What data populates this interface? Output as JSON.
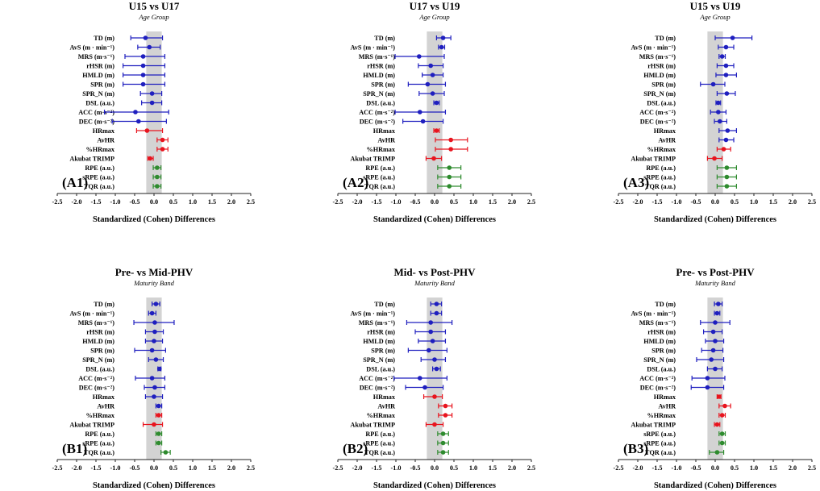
{
  "colors": {
    "blue": "#1f1fbf",
    "red": "#e8141e",
    "green": "#2e8b2e",
    "band": "#d3d3d3",
    "axis": "#222222"
  },
  "chart_data": [
    {
      "type": "forest",
      "panel_id": "(A1)",
      "title": "U15 vs U17",
      "subtitle": "Age Group",
      "xlabel": "Standardized (Cohen) Differences",
      "xlim": [
        -2.5,
        2.5
      ],
      "xticks": [
        "-2.5",
        "-2.0",
        "-1.5",
        "-1.0",
        "-0.5",
        "0.0",
        "0.5",
        "1.0",
        "1.5",
        "2.0",
        "2.5"
      ],
      "band": [
        -0.2,
        0.2
      ],
      "rows": [
        {
          "label": "TD (m)",
          "est": -0.22,
          "lo": -0.6,
          "hi": 0.22,
          "group": "external"
        },
        {
          "label": "AvS (m · min⁻¹)",
          "est": -0.12,
          "lo": -0.42,
          "hi": 0.16,
          "group": "external"
        },
        {
          "label": "MRS (m·s⁻¹)",
          "est": -0.28,
          "lo": -0.75,
          "hi": 0.28,
          "group": "external"
        },
        {
          "label": "rHSR (m)",
          "est": -0.28,
          "lo": -0.8,
          "hi": 0.28,
          "group": "external"
        },
        {
          "label": "HMLD (m)",
          "est": -0.28,
          "lo": -0.8,
          "hi": 0.28,
          "group": "external"
        },
        {
          "label": "SPR (m)",
          "est": -0.28,
          "lo": -0.8,
          "hi": 0.28,
          "group": "external"
        },
        {
          "label": "SPR_N (m)",
          "est": -0.05,
          "lo": -0.35,
          "hi": 0.2,
          "group": "external"
        },
        {
          "label": "DSL (a.u.)",
          "est": -0.05,
          "lo": -0.32,
          "hi": 0.2,
          "group": "external"
        },
        {
          "label": "ACC (m·s⁻²)",
          "est": -0.48,
          "lo": -1.28,
          "hi": 0.38,
          "group": "external"
        },
        {
          "label": "DEC (m·s⁻²)",
          "est": -0.4,
          "lo": -1.08,
          "hi": 0.32,
          "group": "external"
        },
        {
          "label": "HRmax",
          "est": -0.18,
          "lo": -0.45,
          "hi": 0.22,
          "group": "internal_hr"
        },
        {
          "label": "AvHR",
          "est": 0.22,
          "lo": 0.08,
          "hi": 0.36,
          "group": "internal_hr"
        },
        {
          "label": "%HRmax",
          "est": 0.22,
          "lo": 0.08,
          "hi": 0.36,
          "group": "internal_hr"
        },
        {
          "label": "Akubat TRIMP",
          "est": -0.1,
          "lo": -0.16,
          "hi": -0.02,
          "group": "internal_hr"
        },
        {
          "label": "RPE (a.u.)",
          "est": 0.08,
          "lo": -0.02,
          "hi": 0.18,
          "group": "internal_rpe"
        },
        {
          "label": "sRPE (a.u.)",
          "est": 0.08,
          "lo": -0.02,
          "hi": 0.18,
          "group": "internal_rpe"
        },
        {
          "label": "TQR (a.u.)",
          "est": 0.08,
          "lo": -0.02,
          "hi": 0.18,
          "group": "internal_rpe"
        }
      ]
    },
    {
      "type": "forest",
      "panel_id": "(A2)",
      "title": "U17 vs U19",
      "subtitle": "Age Group",
      "xlabel": "Standardized (Cohen) Differences",
      "xlim": [
        -2.5,
        2.5
      ],
      "xticks": [
        "-2.5",
        "-2.0",
        "-1.5",
        "-1.0",
        "-0.5",
        "0.0",
        "0.5",
        "1.0",
        "1.5",
        "2.0",
        "2.5"
      ],
      "band": [
        -0.2,
        0.2
      ],
      "rows": [
        {
          "label": "TD (m)",
          "est": 0.22,
          "lo": 0.05,
          "hi": 0.42,
          "group": "external"
        },
        {
          "label": "AvS (m · min⁻¹)",
          "est": 0.18,
          "lo": 0.1,
          "hi": 0.26,
          "group": "external"
        },
        {
          "label": "MRS (m·s⁻¹)",
          "est": -0.4,
          "lo": -1.02,
          "hi": 0.25,
          "group": "external"
        },
        {
          "label": "rHSR (m)",
          "est": -0.1,
          "lo": -0.42,
          "hi": 0.22,
          "group": "external"
        },
        {
          "label": "HMLD (m)",
          "est": -0.05,
          "lo": -0.32,
          "hi": 0.22,
          "group": "external"
        },
        {
          "label": "SPR (m)",
          "est": -0.18,
          "lo": -0.68,
          "hi": 0.28,
          "group": "external"
        },
        {
          "label": "SPR_N (m)",
          "est": -0.05,
          "lo": -0.4,
          "hi": 0.25,
          "group": "external"
        },
        {
          "label": "DSL (a.u.)",
          "est": 0.05,
          "lo": -0.02,
          "hi": 0.12,
          "group": "external"
        },
        {
          "label": "ACC (m·s⁻²)",
          "est": -0.38,
          "lo": -1.02,
          "hi": 0.28,
          "group": "external"
        },
        {
          "label": "DEC (m·s⁻²)",
          "est": -0.3,
          "lo": -0.82,
          "hi": 0.22,
          "group": "external"
        },
        {
          "label": "HRmax",
          "est": 0.05,
          "lo": -0.02,
          "hi": 0.12,
          "group": "internal_hr"
        },
        {
          "label": "AvHR",
          "est": 0.42,
          "lo": 0.02,
          "hi": 0.85,
          "group": "internal_hr"
        },
        {
          "label": "%HRmax",
          "est": 0.42,
          "lo": 0.02,
          "hi": 0.85,
          "group": "internal_hr"
        },
        {
          "label": "Akubat TRIMP",
          "est": -0.02,
          "lo": -0.22,
          "hi": 0.18,
          "group": "internal_hr"
        },
        {
          "label": "RPE (a.u.)",
          "est": 0.38,
          "lo": 0.08,
          "hi": 0.68,
          "group": "internal_rpe"
        },
        {
          "label": "sRPE (a.u.)",
          "est": 0.38,
          "lo": 0.08,
          "hi": 0.68,
          "group": "internal_rpe"
        },
        {
          "label": "TQR (a.u.)",
          "est": 0.38,
          "lo": 0.08,
          "hi": 0.68,
          "group": "internal_rpe"
        }
      ]
    },
    {
      "type": "forest",
      "panel_id": "(A3)",
      "title": "U15 vs U19",
      "subtitle": "Age Group",
      "xlabel": "Standardized (Cohen) Differences",
      "xlim": [
        -2.5,
        2.5
      ],
      "xticks": [
        "-2.5",
        "-2.0",
        "-1.5",
        "-1.0",
        "-0.5",
        "0.0",
        "0.5",
        "1.0",
        "1.5",
        "2.0",
        "2.5"
      ],
      "band": [
        -0.2,
        0.2
      ],
      "rows": [
        {
          "label": "TD (m)",
          "est": 0.45,
          "lo": 0.0,
          "hi": 0.95,
          "group": "external"
        },
        {
          "label": "AvS (m · min⁻¹)",
          "est": 0.28,
          "lo": 0.08,
          "hi": 0.48,
          "group": "external"
        },
        {
          "label": "MRS (m·s⁻¹)",
          "est": 0.18,
          "lo": 0.1,
          "hi": 0.26,
          "group": "external"
        },
        {
          "label": "rHSR (m)",
          "est": 0.28,
          "lo": 0.05,
          "hi": 0.48,
          "group": "external"
        },
        {
          "label": "HMLD (m)",
          "est": 0.28,
          "lo": 0.02,
          "hi": 0.55,
          "group": "external"
        },
        {
          "label": "SPR (m)",
          "est": -0.05,
          "lo": -0.38,
          "hi": 0.25,
          "group": "external"
        },
        {
          "label": "SPR_N (m)",
          "est": 0.3,
          "lo": 0.05,
          "hi": 0.52,
          "group": "external"
        },
        {
          "label": "DSL (a.u.)",
          "est": 0.08,
          "lo": 0.02,
          "hi": 0.14,
          "group": "external"
        },
        {
          "label": "ACC (m·s⁻²)",
          "est": 0.08,
          "lo": -0.12,
          "hi": 0.28,
          "group": "external"
        },
        {
          "label": "DEC (m·s⁻²)",
          "est": 0.12,
          "lo": -0.02,
          "hi": 0.3,
          "group": "external"
        },
        {
          "label": "HRmax",
          "est": 0.32,
          "lo": 0.1,
          "hi": 0.55,
          "group": "external"
        },
        {
          "label": "AvHR",
          "est": 0.28,
          "lo": 0.1,
          "hi": 0.48,
          "group": "external"
        },
        {
          "label": "%HRmax",
          "est": 0.22,
          "lo": 0.05,
          "hi": 0.4,
          "group": "internal_hr"
        },
        {
          "label": "Akubat TRIMP",
          "est": -0.02,
          "lo": -0.2,
          "hi": 0.18,
          "group": "internal_hr"
        },
        {
          "label": "RPE (a.u.)",
          "est": 0.3,
          "lo": 0.05,
          "hi": 0.55,
          "group": "internal_rpe"
        },
        {
          "label": "sRPE (a.u.)",
          "est": 0.3,
          "lo": 0.05,
          "hi": 0.55,
          "group": "internal_rpe"
        },
        {
          "label": "TQR (a.u.)",
          "est": 0.3,
          "lo": 0.05,
          "hi": 0.55,
          "group": "internal_rpe"
        }
      ]
    },
    {
      "type": "forest",
      "panel_id": "(B1)",
      "title": "Pre- vs Mid-PHV",
      "subtitle": "Maturity Band",
      "xlabel": "Standardized (Cohen) Differences",
      "xlim": [
        -2.5,
        2.5
      ],
      "xticks": [
        "-2.5",
        "-2.0",
        "-1.5",
        "-1.0",
        "-0.5",
        "0.0",
        "0.5",
        "1.0",
        "1.5",
        "2.0",
        "2.5"
      ],
      "band": [
        -0.2,
        0.2
      ],
      "rows": [
        {
          "label": "TD (m)",
          "est": 0.05,
          "lo": -0.05,
          "hi": 0.15,
          "group": "external"
        },
        {
          "label": "AvS (m · min⁻¹)",
          "est": -0.05,
          "lo": -0.14,
          "hi": 0.05,
          "group": "external"
        },
        {
          "label": "MRS (m·s⁻¹)",
          "est": 0.02,
          "lo": -0.52,
          "hi": 0.52,
          "group": "external"
        },
        {
          "label": "rHSR (m)",
          "est": 0.02,
          "lo": -0.22,
          "hi": 0.24,
          "group": "external"
        },
        {
          "label": "HMLD (m)",
          "est": 0.0,
          "lo": -0.22,
          "hi": 0.22,
          "group": "external"
        },
        {
          "label": "SPR (m)",
          "est": -0.05,
          "lo": -0.5,
          "hi": 0.3,
          "group": "external"
        },
        {
          "label": "SPR_N (m)",
          "est": 0.05,
          "lo": -0.14,
          "hi": 0.24,
          "group": "external"
        },
        {
          "label": "DSL (a.u.)",
          "est": 0.14,
          "lo": 0.1,
          "hi": 0.18,
          "group": "external"
        },
        {
          "label": "ACC (m·s⁻²)",
          "est": -0.05,
          "lo": -0.48,
          "hi": 0.28,
          "group": "external"
        },
        {
          "label": "DEC (m·s⁻²)",
          "est": 0.02,
          "lo": -0.25,
          "hi": 0.28,
          "group": "external"
        },
        {
          "label": "HRmax",
          "est": 0.0,
          "lo": -0.22,
          "hi": 0.22,
          "group": "external"
        },
        {
          "label": "AvHR",
          "est": 0.12,
          "lo": 0.05,
          "hi": 0.2,
          "group": "external"
        },
        {
          "label": "%HRmax",
          "est": 0.12,
          "lo": 0.05,
          "hi": 0.2,
          "group": "internal_hr"
        },
        {
          "label": "Akubat TRIMP",
          "est": 0.0,
          "lo": -0.28,
          "hi": 0.22,
          "group": "internal_hr"
        },
        {
          "label": "RPE (a.u.)",
          "est": 0.12,
          "lo": 0.05,
          "hi": 0.2,
          "group": "internal_rpe"
        },
        {
          "label": "sRPE (a.u.)",
          "est": 0.12,
          "lo": 0.05,
          "hi": 0.2,
          "group": "internal_rpe"
        },
        {
          "label": "TQR (a.u.)",
          "est": 0.3,
          "lo": 0.18,
          "hi": 0.42,
          "group": "internal_rpe"
        }
      ]
    },
    {
      "type": "forest",
      "panel_id": "(B2)",
      "title": "Mid- vs Post-PHV",
      "subtitle": "Maturity Band",
      "xlabel": "Standardized (Cohen) Differences",
      "xlim": [
        -2.5,
        2.5
      ],
      "xticks": [
        "-2.5",
        "-2.0",
        "-1.5",
        "-1.0",
        "-0.5",
        "0.0",
        "0.5",
        "1.0",
        "1.5",
        "2.0",
        "2.5"
      ],
      "band": [
        -0.2,
        0.2
      ],
      "rows": [
        {
          "label": "TD (m)",
          "est": 0.05,
          "lo": -0.1,
          "hi": 0.18,
          "group": "external"
        },
        {
          "label": "AvS (m · min⁻¹)",
          "est": 0.05,
          "lo": -0.1,
          "hi": 0.18,
          "group": "external"
        },
        {
          "label": "MRS (m·s⁻¹)",
          "est": -0.1,
          "lo": -0.72,
          "hi": 0.45,
          "group": "external"
        },
        {
          "label": "rHSR (m)",
          "est": -0.1,
          "lo": -0.5,
          "hi": 0.28,
          "group": "external"
        },
        {
          "label": "HMLD (m)",
          "est": -0.05,
          "lo": -0.42,
          "hi": 0.28,
          "group": "external"
        },
        {
          "label": "SPR (m)",
          "est": -0.15,
          "lo": -0.68,
          "hi": 0.32,
          "group": "external"
        },
        {
          "label": "SPR_N (m)",
          "est": 0.0,
          "lo": -0.35,
          "hi": 0.28,
          "group": "external"
        },
        {
          "label": "DSL (a.u.)",
          "est": 0.05,
          "lo": -0.05,
          "hi": 0.15,
          "group": "external"
        },
        {
          "label": "ACC (m·s⁻²)",
          "est": -0.38,
          "lo": -1.05,
          "hi": 0.32,
          "group": "external"
        },
        {
          "label": "DEC (m·s⁻²)",
          "est": -0.25,
          "lo": -0.75,
          "hi": 0.22,
          "group": "external"
        },
        {
          "label": "HRmax",
          "est": 0.0,
          "lo": -0.28,
          "hi": 0.2,
          "group": "internal_hr"
        },
        {
          "label": "AvHR",
          "est": 0.28,
          "lo": 0.1,
          "hi": 0.45,
          "group": "internal_hr"
        },
        {
          "label": "%HRmax",
          "est": 0.28,
          "lo": 0.1,
          "hi": 0.45,
          "group": "internal_hr"
        },
        {
          "label": "Akubat TRIMP",
          "est": 0.0,
          "lo": -0.22,
          "hi": 0.22,
          "group": "internal_hr"
        },
        {
          "label": "RPE (a.u.)",
          "est": 0.22,
          "lo": 0.08,
          "hi": 0.36,
          "group": "internal_rpe"
        },
        {
          "label": "sRPE (a.u.)",
          "est": 0.22,
          "lo": 0.08,
          "hi": 0.36,
          "group": "internal_rpe"
        },
        {
          "label": "TQR (a.u.)",
          "est": 0.22,
          "lo": 0.08,
          "hi": 0.36,
          "group": "internal_rpe"
        }
      ]
    },
    {
      "type": "forest",
      "panel_id": "(B3)",
      "title": "Pre- vs Post-PHV",
      "subtitle": "Maturity Band",
      "xlabel": "Standardized (Cohen) Differences",
      "xlim": [
        -2.5,
        2.5
      ],
      "xticks": [
        "-2.5",
        "-2.0",
        "-1.5",
        "-1.0",
        "-0.5",
        "0.0",
        "0.5",
        "1.0",
        "1.5",
        "2.0",
        "2.5"
      ],
      "band": [
        -0.2,
        0.2
      ],
      "rows": [
        {
          "label": "TD (m)",
          "est": 0.08,
          "lo": -0.02,
          "hi": 0.18,
          "group": "external"
        },
        {
          "label": "AvS (m · min⁻¹)",
          "est": 0.05,
          "lo": -0.02,
          "hi": 0.12,
          "group": "external"
        },
        {
          "label": "MRS (m·s⁻¹)",
          "est": 0.0,
          "lo": -0.38,
          "hi": 0.38,
          "group": "external"
        },
        {
          "label": "rHSR (m)",
          "est": -0.05,
          "lo": -0.3,
          "hi": 0.18,
          "group": "external"
        },
        {
          "label": "HMLD (m)",
          "est": 0.0,
          "lo": -0.25,
          "hi": 0.22,
          "group": "external"
        },
        {
          "label": "SPR (m)",
          "est": -0.05,
          "lo": -0.35,
          "hi": 0.2,
          "group": "external"
        },
        {
          "label": "SPR_N (m)",
          "est": -0.1,
          "lo": -0.48,
          "hi": 0.22,
          "group": "external"
        },
        {
          "label": "DSL (a.u.)",
          "est": 0.0,
          "lo": -0.2,
          "hi": 0.18,
          "group": "external"
        },
        {
          "label": "ACC (m·s⁻²)",
          "est": -0.2,
          "lo": -0.6,
          "hi": 0.25,
          "group": "external"
        },
        {
          "label": "DEC (m·s⁻²)",
          "est": -0.2,
          "lo": -0.62,
          "hi": 0.22,
          "group": "external"
        },
        {
          "label": "HRmax",
          "est": 0.1,
          "lo": 0.05,
          "hi": 0.15,
          "group": "internal_hr"
        },
        {
          "label": "AvHR",
          "est": 0.25,
          "lo": 0.1,
          "hi": 0.4,
          "group": "internal_hr"
        },
        {
          "label": "%HRmax",
          "est": 0.18,
          "lo": 0.1,
          "hi": 0.26,
          "group": "internal_hr"
        },
        {
          "label": "Akubat TRIMP",
          "est": 0.05,
          "lo": -0.02,
          "hi": 0.12,
          "group": "internal_hr"
        },
        {
          "label": "sRPE (a.u.)",
          "est": 0.18,
          "lo": 0.1,
          "hi": 0.26,
          "group": "internal_rpe"
        },
        {
          "label": "sRPE (a.u.)",
          "est": 0.18,
          "lo": 0.1,
          "hi": 0.26,
          "group": "internal_rpe"
        },
        {
          "label": "TQR (a.u.)",
          "est": 0.05,
          "lo": -0.15,
          "hi": 0.22,
          "group": "internal_rpe"
        }
      ]
    }
  ]
}
